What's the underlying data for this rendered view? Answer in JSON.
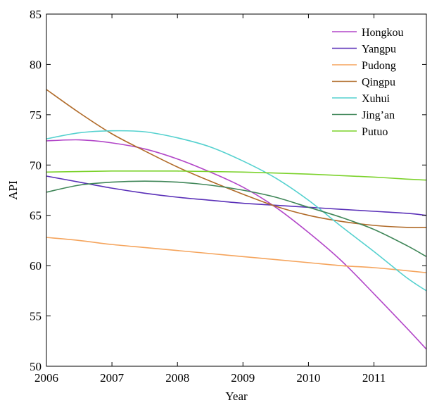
{
  "chart_data": {
    "type": "line",
    "title": "",
    "xlabel": "Year",
    "ylabel": "API",
    "xlim": [
      2006,
      2011.8
    ],
    "ylim": [
      50,
      85
    ],
    "xticks": [
      2006,
      2007,
      2008,
      2009,
      2010,
      2011
    ],
    "yticks": [
      50,
      55,
      60,
      65,
      70,
      75,
      80,
      85
    ],
    "grid": false,
    "legend_position": "top-right",
    "x": [
      2006.0,
      2006.5,
      2007.0,
      2007.5,
      2008.0,
      2008.5,
      2009.0,
      2009.5,
      2010.0,
      2010.5,
      2011.0,
      2011.5,
      2011.8
    ],
    "series": [
      {
        "name": "Hongkou",
        "color": "#b246c8",
        "values": [
          72.4,
          72.5,
          72.2,
          71.6,
          70.6,
          69.3,
          67.8,
          65.8,
          63.3,
          60.5,
          57.2,
          53.8,
          51.7
        ]
      },
      {
        "name": "Yangpu",
        "color": "#5a30b8",
        "values": [
          68.9,
          68.3,
          67.7,
          67.2,
          66.8,
          66.5,
          66.2,
          66.0,
          65.8,
          65.6,
          65.4,
          65.2,
          65.0
        ]
      },
      {
        "name": "Pudong",
        "color": "#f5a45c",
        "values": [
          62.8,
          62.5,
          62.1,
          61.8,
          61.5,
          61.2,
          60.9,
          60.6,
          60.3,
          60.0,
          59.8,
          59.5,
          59.3
        ]
      },
      {
        "name": "Qingpu",
        "color": "#b06a28",
        "values": [
          77.5,
          75.2,
          73.1,
          71.4,
          69.8,
          68.4,
          67.1,
          65.9,
          65.0,
          64.4,
          64.0,
          63.8,
          63.8
        ]
      },
      {
        "name": "Xuhui",
        "color": "#55d1cf",
        "values": [
          72.6,
          73.2,
          73.4,
          73.3,
          72.7,
          71.8,
          70.4,
          68.7,
          66.5,
          63.9,
          61.4,
          58.8,
          57.5
        ]
      },
      {
        "name": "Jing’an",
        "color": "#3f8658",
        "values": [
          67.3,
          68.0,
          68.3,
          68.4,
          68.3,
          68.0,
          67.5,
          66.8,
          65.8,
          64.8,
          63.6,
          62.0,
          60.9
        ]
      },
      {
        "name": "Putuo",
        "color": "#7cd22c",
        "values": [
          69.3,
          69.35,
          69.4,
          69.4,
          69.4,
          69.35,
          69.3,
          69.2,
          69.1,
          68.95,
          68.8,
          68.6,
          68.5
        ]
      }
    ]
  }
}
